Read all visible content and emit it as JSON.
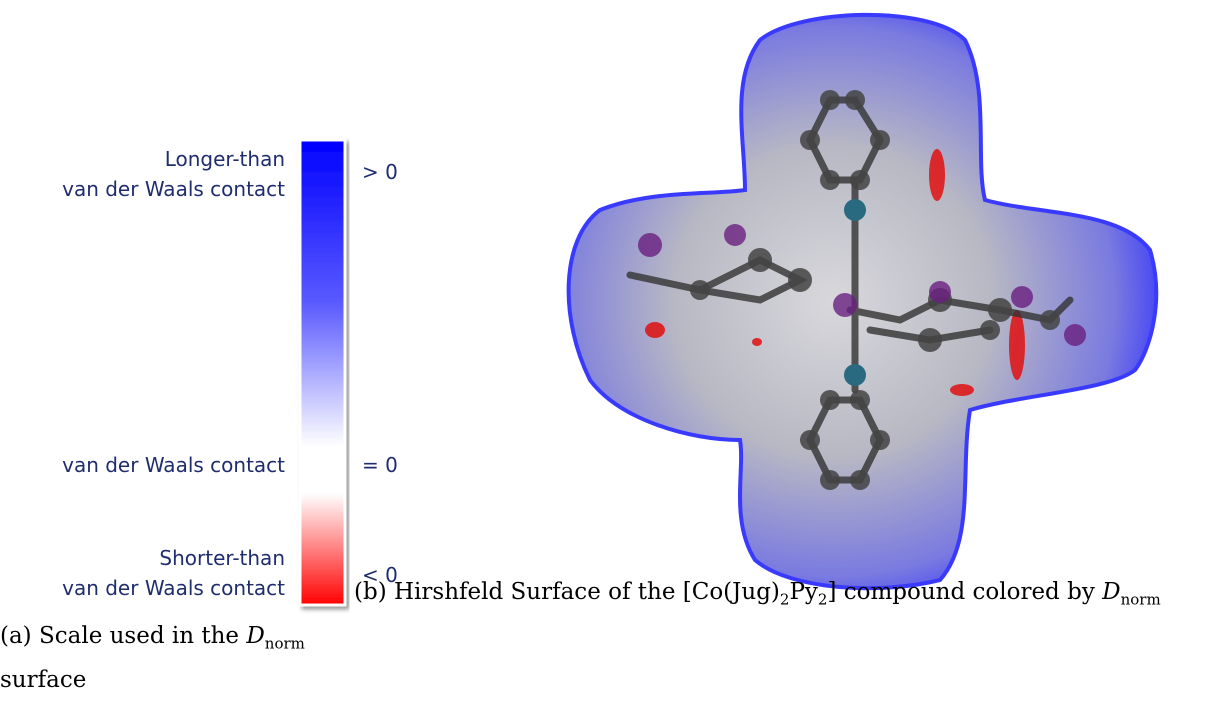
{
  "scale": {
    "top_label": [
      "Longer-than",
      "van der Waals contact"
    ],
    "top_sign": "> 0",
    "middle_label": "van der Waals contact",
    "middle_sign": "= 0",
    "bottom_label": [
      "Shorter-than",
      "van der Waals contact"
    ],
    "bottom_sign": "< 0"
  },
  "caption_a": {
    "label": "(a)",
    "text": "Scale used in the",
    "symbol": "D",
    "subscript": "norm",
    "tail": "surface"
  },
  "caption_b": {
    "label": "(b)",
    "text": "Hirshfeld Surface of the [Co(Jug)",
    "sub1": "2",
    "mid": "Py",
    "sub2": "2",
    "tail": "] compound colored by",
    "symbol": "D",
    "subscript": "norm"
  }
}
